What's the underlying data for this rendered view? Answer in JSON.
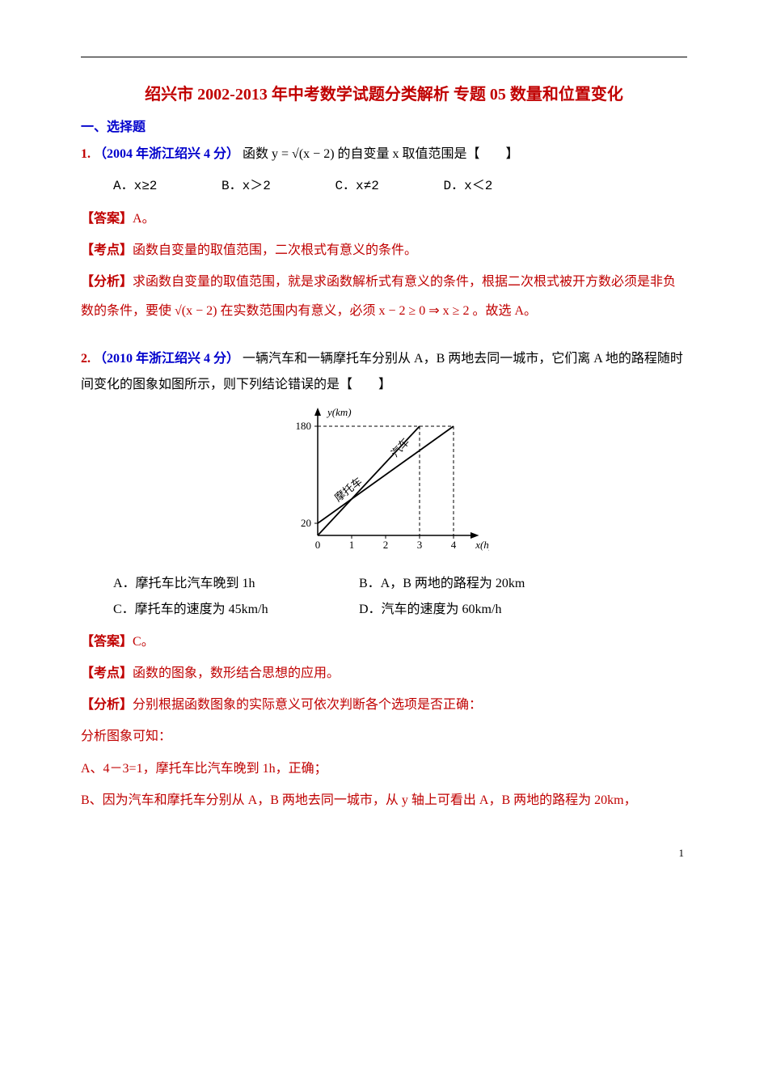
{
  "title": "绍兴市 2002-2013 年中考数学试题分类解析 专题 05 数量和位置变化",
  "section_heading": "一、选择题",
  "q1": {
    "num": "1.",
    "src": "（2004 年浙江绍兴 4 分）",
    "stem_a": "函数",
    "formula": "y = √(x − 2)",
    "stem_b": "的自变量 x 取值范围是【　　】",
    "opts": {
      "A": "A．x≥2",
      "B": "B．x＞2",
      "C": "C．x≠2",
      "D": "D．x＜2"
    },
    "ans_label": "【答案】",
    "ans_val": "A。",
    "kd_label": "【考点】",
    "kd_val": "函数自变量的取值范围，二次根式有意义的条件。",
    "fx_label": "【分析】",
    "fx_body": "求函数自变量的取值范围，就是求函数解析式有意义的条件，根据二次根式被开方数必须是非负数的条件，要使 √(x − 2) 在实数范围内有意义，必须 x − 2 ≥ 0 ⇒ x ≥ 2 。故选 A。"
  },
  "q2": {
    "num": "2.",
    "src": "（2010 年浙江绍兴 4 分）",
    "stem": "一辆汽车和一辆摩托车分别从 A，B 两地去同一城市，它们离 A 地的路程随时间变化的图象如图所示，则下列结论错误的是【　　】",
    "chart": {
      "type": "line",
      "xlabel": "x(h)",
      "ylabel": "y(km)",
      "yticks": [
        20,
        180
      ],
      "xticks": [
        0,
        1,
        2,
        3,
        4
      ],
      "lines": {
        "car": {
          "label": "汽车",
          "points": [
            [
              0,
              0
            ],
            [
              3,
              180
            ]
          ]
        },
        "moto": {
          "label": "摩托车",
          "points": [
            [
              0,
              20
            ],
            [
              4,
              180
            ]
          ]
        }
      },
      "dash_refs": [
        [
          3,
          180
        ],
        [
          4,
          180
        ]
      ],
      "axis_color": "#000000",
      "line_color": "#000000",
      "dash_color": "#000000",
      "bg": "#ffffff",
      "font_size": 13
    },
    "opts": {
      "A": "A．摩托车比汽车晚到 1h",
      "B": "B．A，B 两地的路程为 20km",
      "C": "C．摩托车的速度为 45km/h",
      "D": "D．汽车的速度为 60km/h"
    },
    "ans_label": "【答案】",
    "ans_val": "C。",
    "kd_label": "【考点】",
    "kd_val": "函数的图象，数形结合思想的应用。",
    "fx_label": "【分析】",
    "fx_l1": "分别根据函数图象的实际意义可依次判断各个选项是否正确：",
    "fx_l2": "分析图象可知：",
    "fx_l3": "A、4－3=1，摩托车比汽车晚到 1h，正确；",
    "fx_l4": "B、因为汽车和摩托车分别从 A，B 两地去同一城市，从 y 轴上可看出 A，B 两地的路程为 20km，"
  },
  "page_number": "1"
}
